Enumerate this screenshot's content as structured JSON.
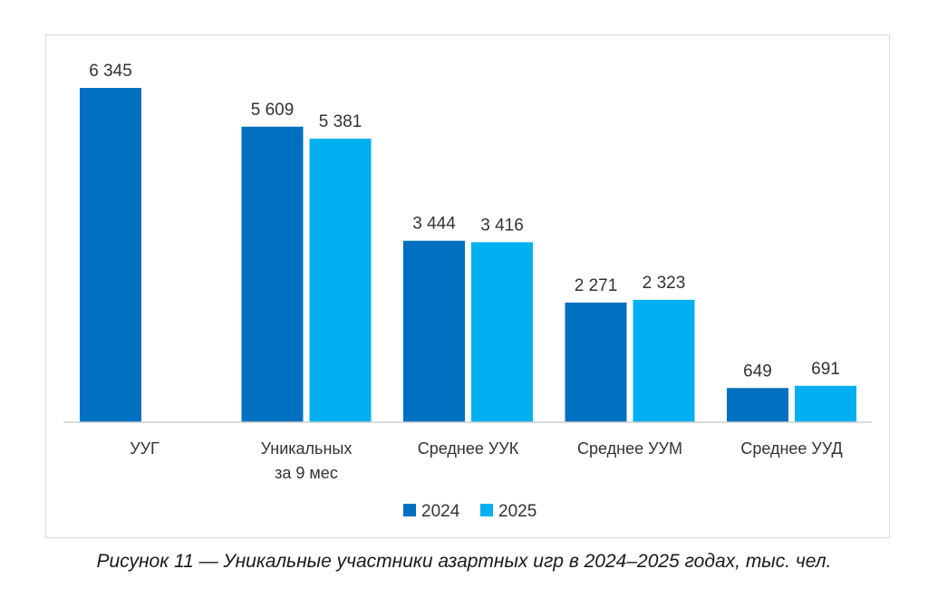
{
  "caption": "Рисунок 11 — Уникальные участники азартных игр в 2024–2025 годах, тыс. чел.",
  "chart_data": {
    "type": "bar",
    "title": "",
    "xlabel": "",
    "ylabel": "",
    "ylim": [
      0,
      6345
    ],
    "grid": false,
    "legend_position": "bottom",
    "categories": [
      [
        "УУГ"
      ],
      [
        "Уникальных",
        "за 9 мес"
      ],
      [
        "Среднее УУК"
      ],
      [
        "Среднее УУМ"
      ],
      [
        "Среднее УУД"
      ]
    ],
    "series": [
      {
        "name": "2024",
        "color": "#0070C0",
        "values": [
          6345,
          5609,
          3444,
          2271,
          649
        ],
        "labels": [
          "6 345",
          "5 609",
          "3 444",
          "2 271",
          "649"
        ]
      },
      {
        "name": "2025",
        "color": "#00B0F0",
        "values": [
          null,
          5381,
          3416,
          2323,
          691
        ],
        "labels": [
          "",
          "5 381",
          "3 416",
          "2 323",
          "691"
        ]
      }
    ]
  }
}
